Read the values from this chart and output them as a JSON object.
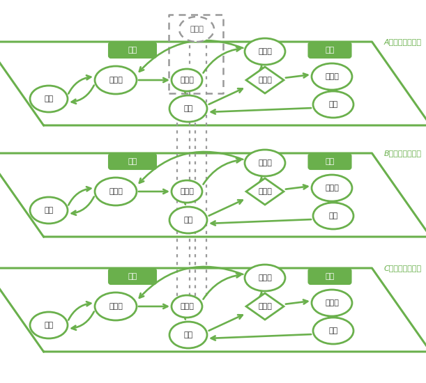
{
  "green": "#6ab04c",
  "gray_dashed": "#999999",
  "white": "#ffffff",
  "nodes": {
    "yomu": "読む",
    "kangaeru": "考える",
    "plan": "プラン",
    "tsukuru": "作る",
    "katachi": "かたち",
    "kizuku": "気づく",
    "miseru": "見せる",
    "hanasu": "話す",
    "naisho": "内省",
    "taiken": "体験"
  },
  "labels": [
    "Aさんの創作活動",
    "Bさんの創作活動",
    "Cさんの創作活動"
  ]
}
